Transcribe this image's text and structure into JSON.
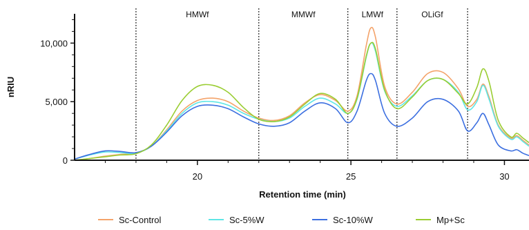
{
  "chart_data": {
    "type": "line",
    "xlabel": "Retention time (min)",
    "ylabel": "nRIU",
    "xlim": [
      16.0,
      30.8
    ],
    "ylim": [
      0,
      12500
    ],
    "x_ticks": [
      20,
      25,
      30
    ],
    "x_tick_labels": [
      "20",
      "25",
      "30"
    ],
    "y_ticks": [
      0,
      5000,
      10000
    ],
    "y_tick_labels": [
      "0",
      "5,000",
      "10,000"
    ],
    "regions": [
      {
        "label": "HMWf",
        "x": [
          18.0,
          22.0
        ]
      },
      {
        "label": "MMWf",
        "x": [
          22.0,
          24.9
        ]
      },
      {
        "label": "LMWf",
        "x": [
          24.9,
          26.5
        ]
      },
      {
        "label": "OLiGf",
        "x": [
          26.5,
          28.8
        ]
      }
    ],
    "divider_x": [
      18.0,
      22.0,
      24.9,
      26.5,
      28.8
    ],
    "legend_position": "bottom",
    "series": [
      {
        "name": "Sc-Control",
        "color": "#f4a36a",
        "points": [
          [
            16,
            0
          ],
          [
            16.5,
            150
          ],
          [
            17,
            350
          ],
          [
            17.5,
            500
          ],
          [
            18,
            600
          ],
          [
            18.5,
            1200
          ],
          [
            19,
            2600
          ],
          [
            19.5,
            4200
          ],
          [
            20,
            5100
          ],
          [
            20.5,
            5300
          ],
          [
            21,
            5000
          ],
          [
            21.5,
            4200
          ],
          [
            22,
            3600
          ],
          [
            22.5,
            3400
          ],
          [
            23,
            3800
          ],
          [
            23.5,
            4900
          ],
          [
            24,
            5600
          ],
          [
            24.5,
            5100
          ],
          [
            24.9,
            4200
          ],
          [
            25.2,
            5500
          ],
          [
            25.5,
            9800
          ],
          [
            25.65,
            11300
          ],
          [
            25.8,
            10500
          ],
          [
            26.1,
            6300
          ],
          [
            26.5,
            4800
          ],
          [
            27,
            5800
          ],
          [
            27.5,
            7400
          ],
          [
            28,
            7500
          ],
          [
            28.5,
            6100
          ],
          [
            28.8,
            4600
          ],
          [
            29.1,
            5200
          ],
          [
            29.3,
            6500
          ],
          [
            29.5,
            5400
          ],
          [
            29.8,
            3000
          ],
          [
            30.2,
            1900
          ],
          [
            30.4,
            2100
          ],
          [
            30.6,
            1700
          ],
          [
            30.8,
            1300
          ]
        ]
      },
      {
        "name": "Sc-5%W",
        "color": "#5ee6e6",
        "points": [
          [
            16,
            100
          ],
          [
            16.5,
            450
          ],
          [
            17,
            700
          ],
          [
            17.5,
            650
          ],
          [
            18,
            600
          ],
          [
            18.5,
            1200
          ],
          [
            19,
            2500
          ],
          [
            19.5,
            4000
          ],
          [
            20,
            4900
          ],
          [
            20.5,
            5000
          ],
          [
            21,
            4700
          ],
          [
            21.5,
            4000
          ],
          [
            22,
            3500
          ],
          [
            22.5,
            3300
          ],
          [
            23,
            3600
          ],
          [
            23.5,
            4600
          ],
          [
            24,
            5300
          ],
          [
            24.5,
            4800
          ],
          [
            24.9,
            4000
          ],
          [
            25.2,
            5200
          ],
          [
            25.5,
            8800
          ],
          [
            25.65,
            10000
          ],
          [
            25.8,
            9300
          ],
          [
            26.1,
            5900
          ],
          [
            26.5,
            4600
          ],
          [
            27,
            5500
          ],
          [
            27.5,
            6800
          ],
          [
            28,
            6900
          ],
          [
            28.5,
            5800
          ],
          [
            28.8,
            4300
          ],
          [
            29.1,
            5000
          ],
          [
            29.3,
            6400
          ],
          [
            29.5,
            5200
          ],
          [
            29.8,
            2900
          ],
          [
            30.2,
            1800
          ],
          [
            30.4,
            2000
          ],
          [
            30.6,
            1600
          ],
          [
            30.8,
            1200
          ]
        ]
      },
      {
        "name": "Sc-10%W",
        "color": "#3c6fe0",
        "points": [
          [
            16,
            100
          ],
          [
            16.5,
            500
          ],
          [
            17,
            800
          ],
          [
            17.5,
            750
          ],
          [
            18,
            650
          ],
          [
            18.5,
            1200
          ],
          [
            19,
            2400
          ],
          [
            19.5,
            3800
          ],
          [
            20,
            4600
          ],
          [
            20.5,
            4700
          ],
          [
            21,
            4400
          ],
          [
            21.5,
            3700
          ],
          [
            22,
            3100
          ],
          [
            22.5,
            2900
          ],
          [
            23,
            3200
          ],
          [
            23.5,
            4200
          ],
          [
            24,
            4900
          ],
          [
            24.5,
            4400
          ],
          [
            24.9,
            3200
          ],
          [
            25.2,
            4200
          ],
          [
            25.5,
            6800
          ],
          [
            25.65,
            7400
          ],
          [
            25.8,
            6800
          ],
          [
            26.1,
            4000
          ],
          [
            26.5,
            2900
          ],
          [
            27,
            3600
          ],
          [
            27.5,
            5000
          ],
          [
            28,
            5200
          ],
          [
            28.5,
            4200
          ],
          [
            28.8,
            2500
          ],
          [
            29.1,
            3200
          ],
          [
            29.3,
            4000
          ],
          [
            29.5,
            3000
          ],
          [
            29.8,
            1300
          ],
          [
            30.2,
            800
          ],
          [
            30.4,
            900
          ],
          [
            30.6,
            600
          ],
          [
            30.8,
            400
          ]
        ]
      },
      {
        "name": "Mp+Sc",
        "color": "#9acd32",
        "points": [
          [
            16,
            0
          ],
          [
            16.5,
            150
          ],
          [
            17,
            300
          ],
          [
            17.5,
            450
          ],
          [
            18,
            550
          ],
          [
            18.5,
            1300
          ],
          [
            19,
            3000
          ],
          [
            19.5,
            5100
          ],
          [
            20,
            6300
          ],
          [
            20.5,
            6400
          ],
          [
            21,
            5800
          ],
          [
            21.5,
            4500
          ],
          [
            22,
            3500
          ],
          [
            22.5,
            3300
          ],
          [
            23,
            3700
          ],
          [
            23.5,
            4800
          ],
          [
            24,
            5700
          ],
          [
            24.5,
            5200
          ],
          [
            24.9,
            4000
          ],
          [
            25.2,
            5300
          ],
          [
            25.5,
            8900
          ],
          [
            25.65,
            10000
          ],
          [
            25.8,
            9500
          ],
          [
            26.1,
            6000
          ],
          [
            26.5,
            4400
          ],
          [
            27,
            5400
          ],
          [
            27.5,
            6800
          ],
          [
            28,
            6900
          ],
          [
            28.5,
            5700
          ],
          [
            28.8,
            4800
          ],
          [
            29.1,
            6200
          ],
          [
            29.3,
            7800
          ],
          [
            29.5,
            6700
          ],
          [
            29.8,
            3400
          ],
          [
            30.2,
            2000
          ],
          [
            30.4,
            2300
          ],
          [
            30.6,
            1900
          ],
          [
            30.8,
            1500
          ]
        ]
      }
    ]
  }
}
